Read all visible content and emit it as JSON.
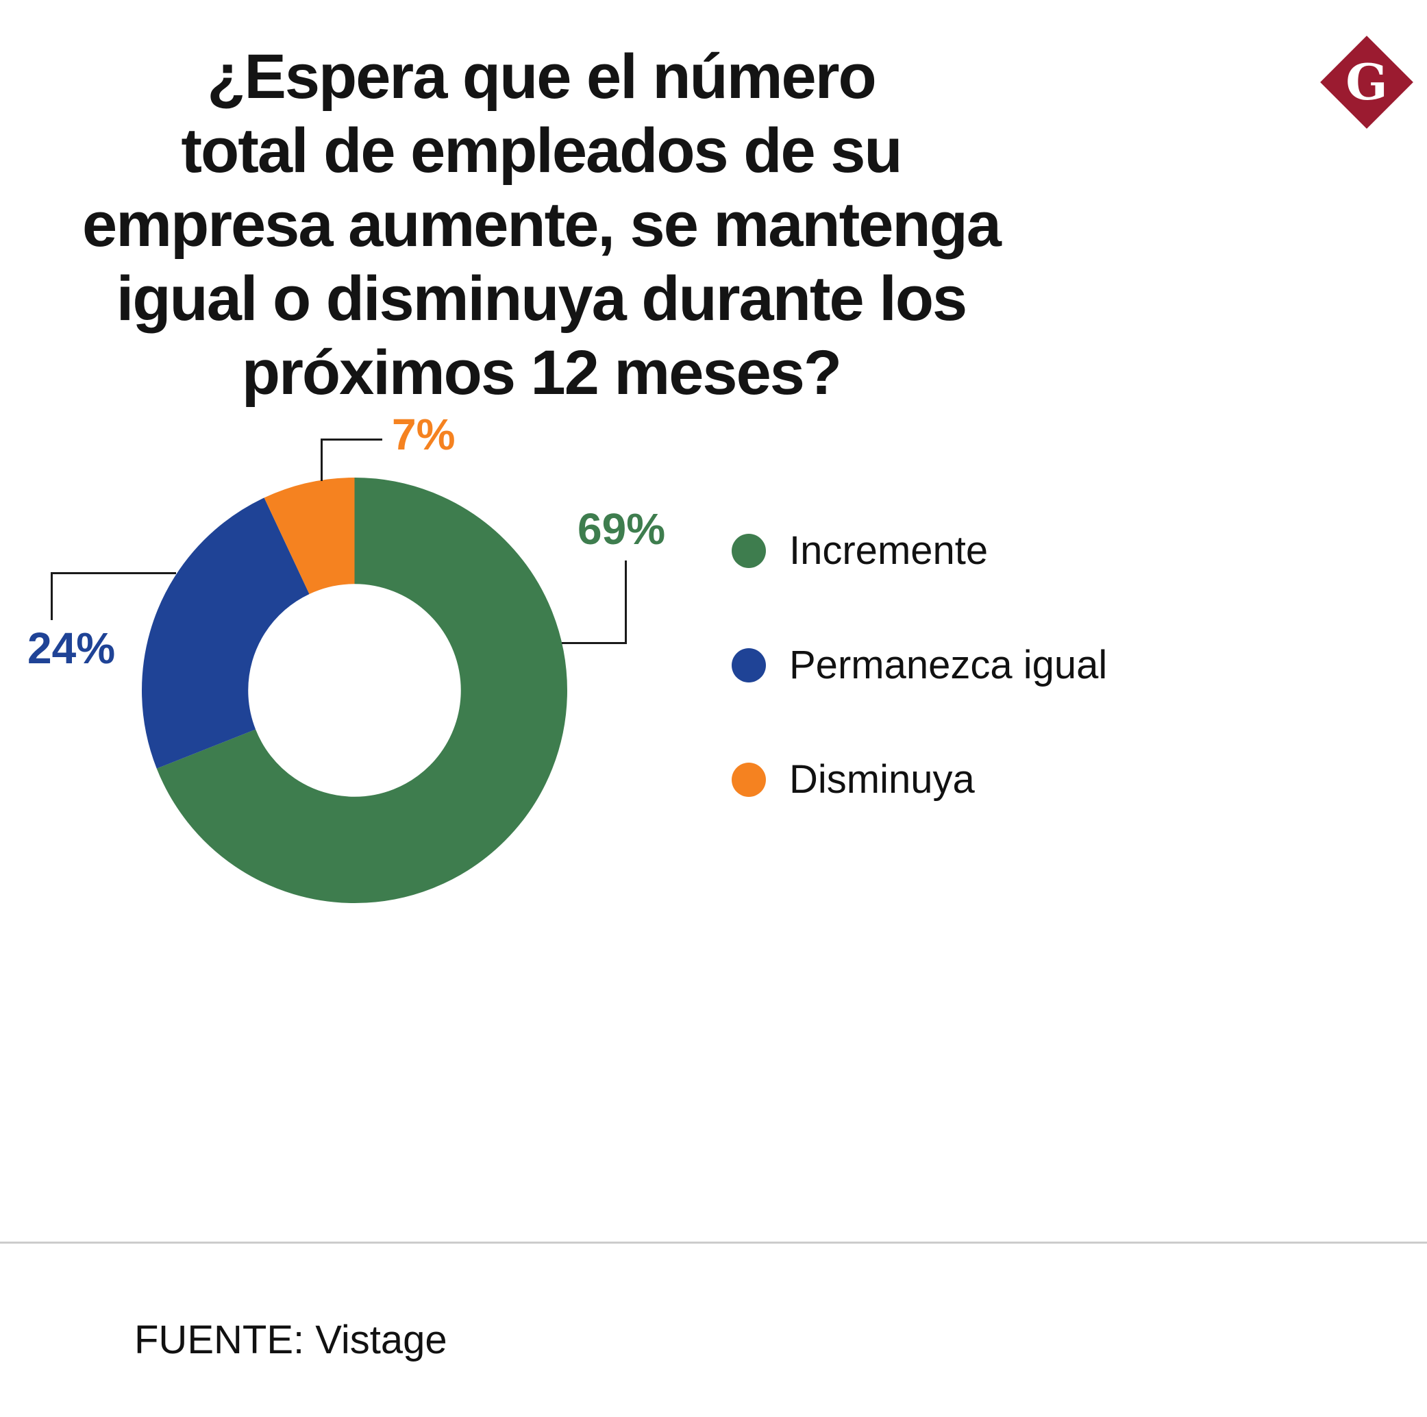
{
  "page": {
    "background": "#ffffff"
  },
  "logo": {
    "letter": "G",
    "color": "#9b1b30"
  },
  "title": {
    "lines": [
      "¿Espera que el número",
      "total de empleados de su",
      "empresa aumente, se mantenga",
      "igual o disminuya durante los",
      "próximos 12 meses?"
    ]
  },
  "chart_data": {
    "type": "pie",
    "subtype": "donut",
    "title": "¿Espera que el número total de empleados de su empresa aumente, se mantenga igual o disminuya durante los próximos 12 meses?",
    "unit": "%",
    "start_angle_deg": 0,
    "direction": "clockwise",
    "inner_radius_ratio": 0.5,
    "legend_position": "right",
    "segments": [
      {
        "label": "Incremente",
        "value": 69,
        "pct_label": "69%",
        "color": "#3e7d4e"
      },
      {
        "label": "Permanezca igual",
        "value": 24,
        "pct_label": "24%",
        "color": "#1f4396"
      },
      {
        "label": "Disminuya",
        "value": 7,
        "pct_label": "7%",
        "color": "#f58220"
      }
    ]
  },
  "source": {
    "text": "FUENTE: Vistage"
  }
}
